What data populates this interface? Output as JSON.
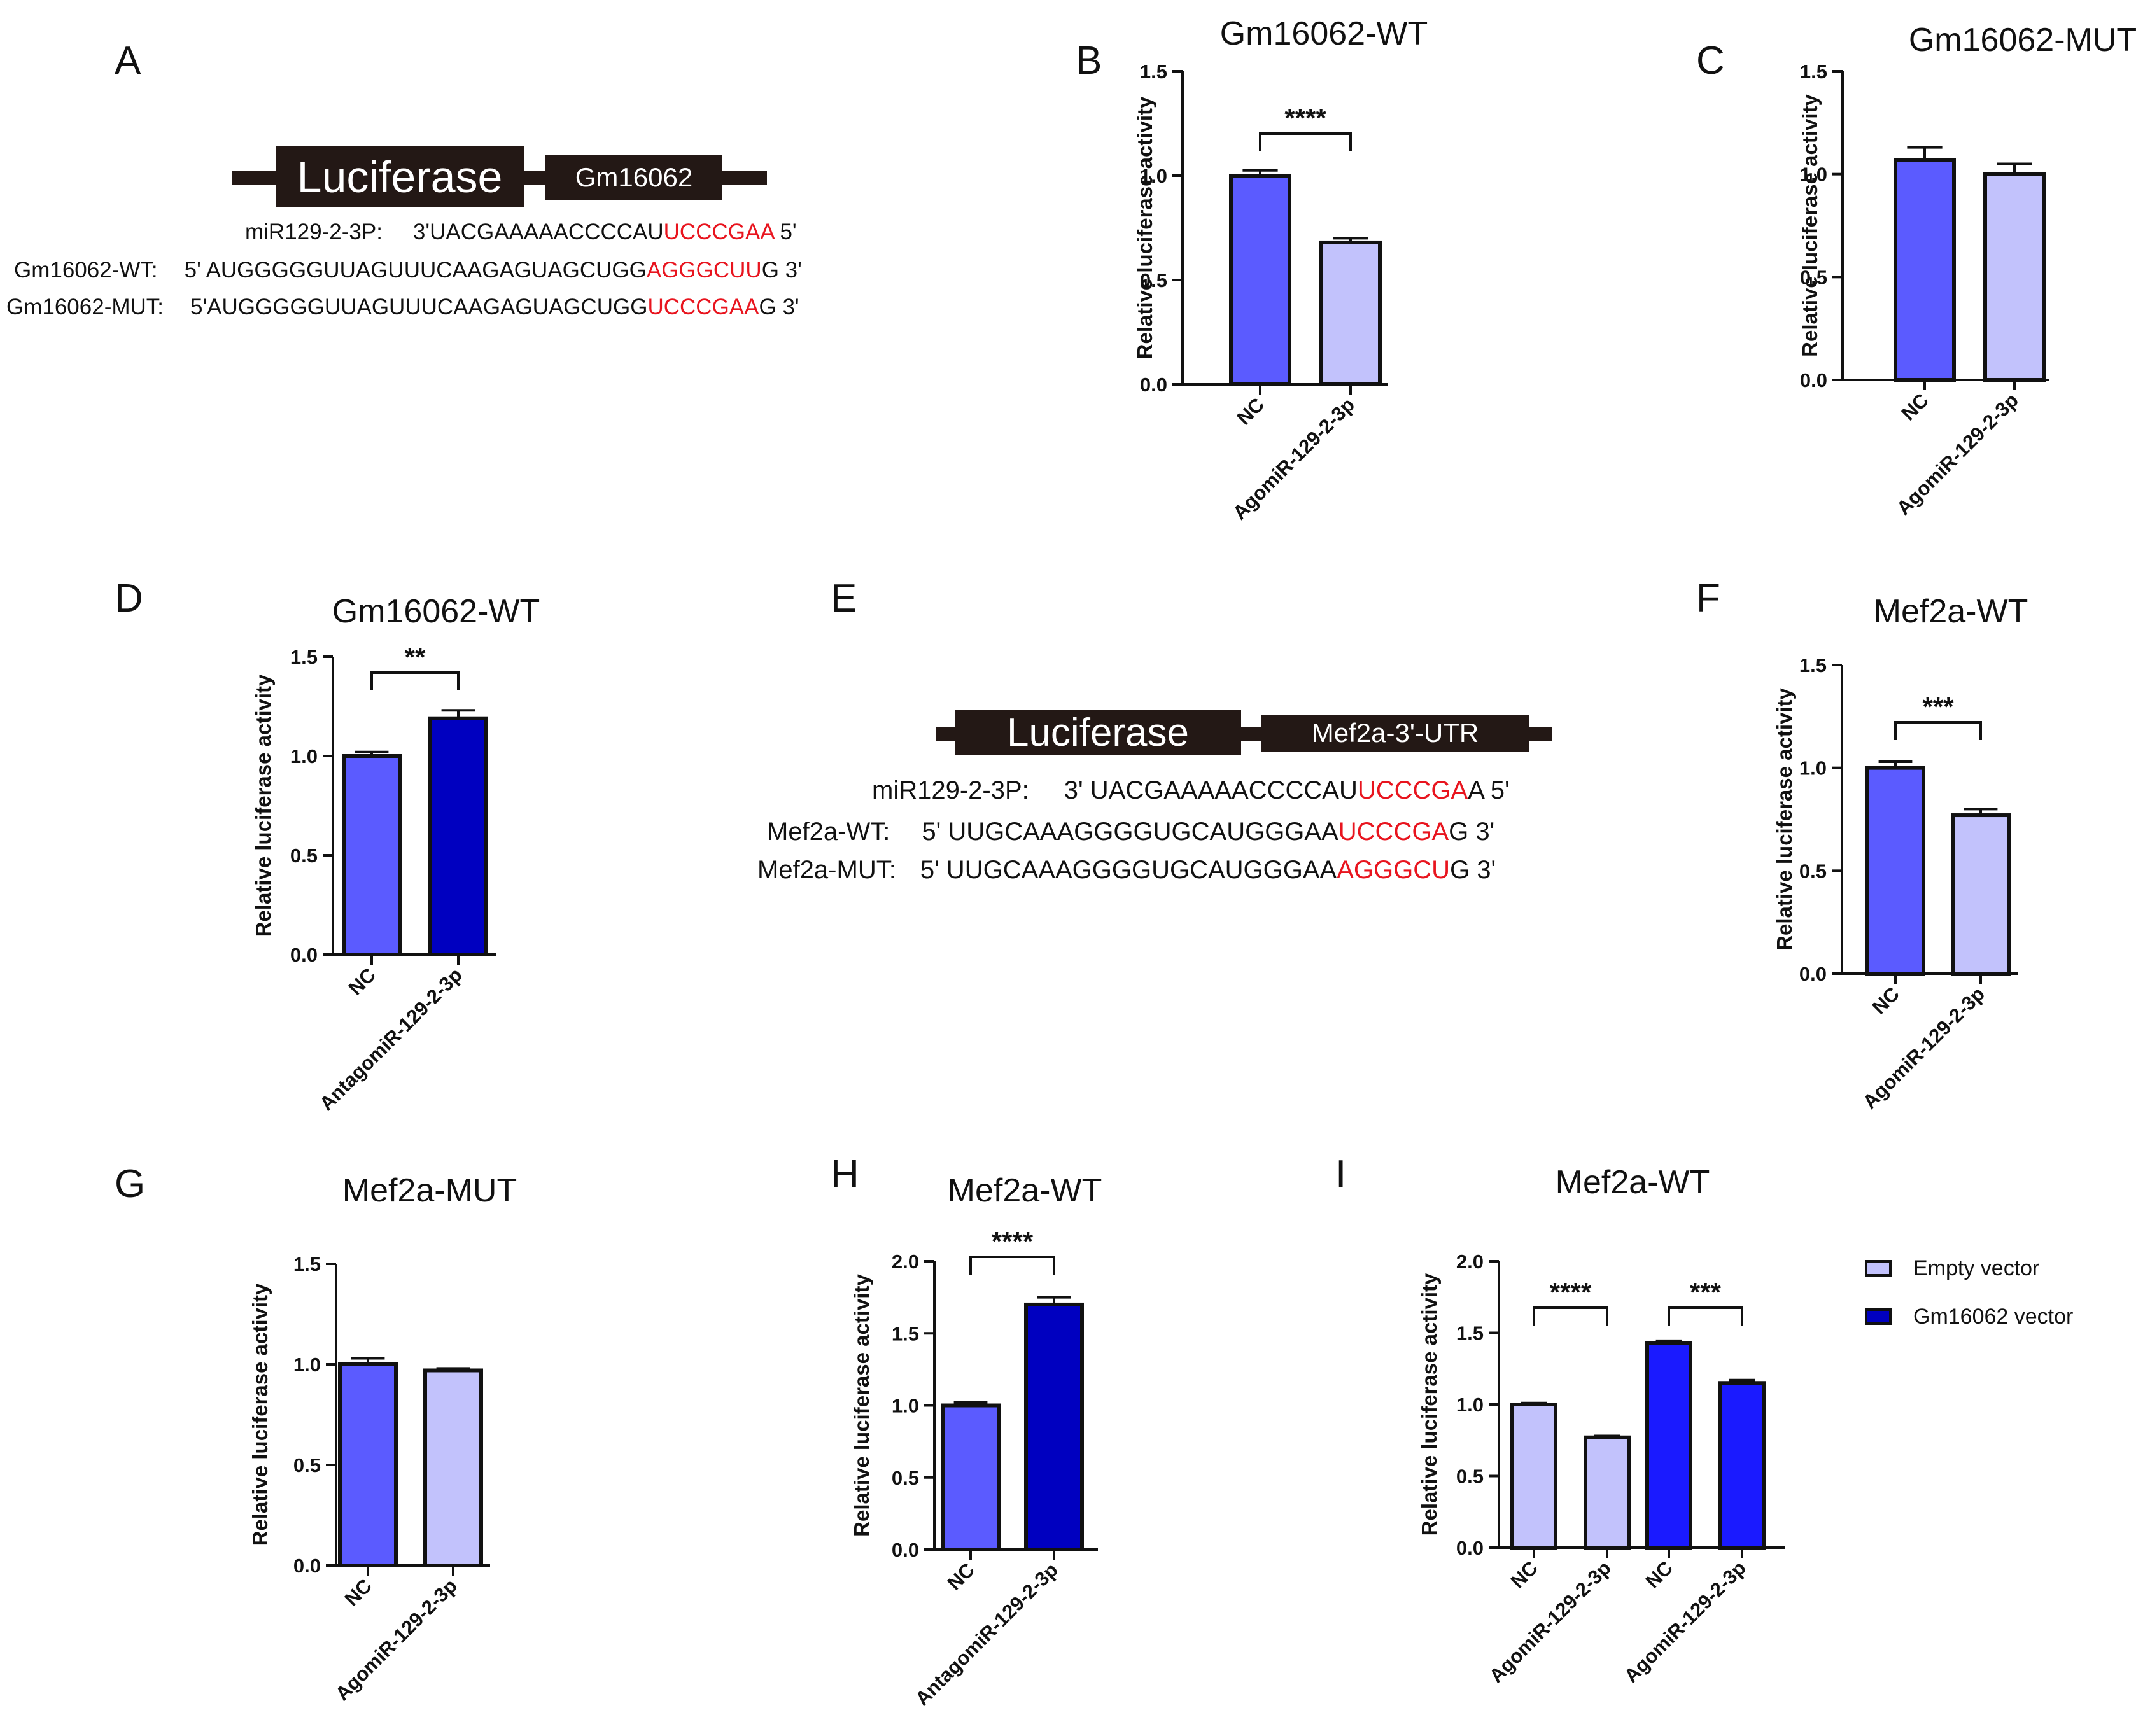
{
  "panels": {
    "A": "A",
    "B": "B",
    "C": "C",
    "D": "D",
    "E": "E",
    "F": "F",
    "G": "G",
    "H": "H",
    "I": "I"
  },
  "constructA": {
    "reporter": "Luciferase",
    "insert": "Gm16062",
    "rows": [
      {
        "label": "miR129-2-3P:",
        "seq": "3'UACGAAAAACCCCAU",
        "highlight": "UCCCGAA",
        "tail": " 5'"
      },
      {
        "label": "Gm16062-WT:",
        "seq": "5' AUGGGGGUUAGUUUCAAGAGUAGCUGG",
        "highlight": "AGGGCUU",
        "tail": "G  3'"
      },
      {
        "label": "Gm16062-MUT:",
        "seq": "5'AUGGGGGUUAGUUUCAAGAGUAGCUGG",
        "highlight": "UCCCGAA",
        "tail": "G  3'"
      }
    ]
  },
  "constructE": {
    "reporter": "Luciferase",
    "insert": "Mef2a-3'-UTR",
    "rows": [
      {
        "label": "miR129-2-3P:",
        "seq": "3' UACGAAAAACCCCAU",
        "highlight": "UCCCGA",
        "tail": "A  5'"
      },
      {
        "label": "Mef2a-WT:",
        "seq": "5' UUGCAAAGGGGUGCAUGGGAA",
        "highlight": "UCCCGA",
        "tail": "G  3'"
      },
      {
        "label": "Mef2a-MUT:",
        "seq": "5' UUGCAAAGGGGUGCAUGGGAA",
        "highlight": "AGGGCU",
        "tail": "G  3'"
      }
    ]
  },
  "colors": {
    "nc_blue": "#5b5bff",
    "light_lavender": "#c2c2fc",
    "dark_blue": "#0000c0",
    "bright_blue": "#1a1aff",
    "seq_red": "#e8141e"
  },
  "legend": [
    {
      "label": "Empty vector",
      "color": "#c2c2fc"
    },
    {
      "label": "Gm16062 vector",
      "color": "#0000c0"
    }
  ],
  "chart_data": [
    {
      "id": "B",
      "type": "bar",
      "title": "Gm16062-WT",
      "ylabel": "Relative luciferase activity",
      "ylim": [
        0,
        1.5
      ],
      "yticks": [
        "0.0",
        "0.5",
        "1.0",
        "1.5"
      ],
      "categories": [
        "NC",
        "AgomiR-129-2-3p"
      ],
      "values": [
        1.0,
        0.68
      ],
      "errors": [
        0.025,
        0.02
      ],
      "colors": [
        "#5b5bff",
        "#c2c2fc"
      ],
      "significance": [
        {
          "between": [
            0,
            1
          ],
          "label": "****"
        }
      ]
    },
    {
      "id": "C",
      "type": "bar",
      "title": "Gm16062-MUT",
      "ylabel": "Relative luciferase activity",
      "ylim": [
        0,
        1.5
      ],
      "yticks": [
        "0.0",
        "0.5",
        "1.0",
        "1.5"
      ],
      "categories": [
        "NC",
        "AgomiR-129-2-3p"
      ],
      "values": [
        1.07,
        1.0
      ],
      "errors": [
        0.06,
        0.05
      ],
      "colors": [
        "#5b5bff",
        "#c2c2fc"
      ],
      "significance": []
    },
    {
      "id": "D",
      "type": "bar",
      "title": "Gm16062-WT",
      "ylabel": "Relative luciferase activity",
      "ylim": [
        0,
        1.5
      ],
      "yticks": [
        "0.0",
        "0.5",
        "1.0",
        "1.5"
      ],
      "categories": [
        "NC",
        "AntagomiR-129-2-3p"
      ],
      "values": [
        1.0,
        1.19
      ],
      "errors": [
        0.02,
        0.04
      ],
      "colors": [
        "#5b5bff",
        "#0000c0"
      ],
      "significance": [
        {
          "between": [
            0,
            1
          ],
          "label": "**"
        }
      ]
    },
    {
      "id": "F",
      "type": "bar",
      "title": "Mef2a-WT",
      "ylabel": "Relative luciferase activity",
      "ylim": [
        0,
        1.5
      ],
      "yticks": [
        "0.0",
        "0.5",
        "1.0",
        "1.5"
      ],
      "categories": [
        "NC",
        "AgomiR-129-2-3p"
      ],
      "values": [
        1.0,
        0.77
      ],
      "errors": [
        0.03,
        0.03
      ],
      "colors": [
        "#5b5bff",
        "#c2c2fc"
      ],
      "significance": [
        {
          "between": [
            0,
            1
          ],
          "label": "***"
        }
      ]
    },
    {
      "id": "G",
      "type": "bar",
      "title": "Mef2a-MUT",
      "ylabel": "Relative luciferase activity",
      "ylim": [
        0,
        1.5
      ],
      "yticks": [
        "0.0",
        "0.5",
        "1.0",
        "1.5"
      ],
      "categories": [
        "NC",
        "AgomiR-129-2-3p"
      ],
      "values": [
        1.0,
        0.97
      ],
      "errors": [
        0.03,
        0.01
      ],
      "colors": [
        "#5b5bff",
        "#c2c2fc"
      ],
      "significance": []
    },
    {
      "id": "H",
      "type": "bar",
      "title": "Mef2a-WT",
      "ylabel": "Relative luciferase activity",
      "ylim": [
        0,
        2.0
      ],
      "yticks": [
        "0.0",
        "0.5",
        "1.0",
        "1.5",
        "2.0"
      ],
      "categories": [
        "NC",
        "AntagomiR-129-2-3p"
      ],
      "values": [
        1.0,
        1.7
      ],
      "errors": [
        0.02,
        0.05
      ],
      "colors": [
        "#5b5bff",
        "#0000c0"
      ],
      "significance": [
        {
          "between": [
            0,
            1
          ],
          "label": "****"
        }
      ]
    },
    {
      "id": "I",
      "type": "bar",
      "title": "Mef2a-WT",
      "ylabel": "Relative luciferase activity",
      "ylim": [
        0,
        2.0
      ],
      "yticks": [
        "0.0",
        "0.5",
        "1.0",
        "1.5",
        "2.0"
      ],
      "categories": [
        "NC",
        "AgomiR-129-2-3p",
        "NC",
        "AgomiR-129-2-3p"
      ],
      "values": [
        1.0,
        0.77,
        1.43,
        1.15
      ],
      "errors": [
        0.01,
        0.01,
        0.015,
        0.02
      ],
      "colors": [
        "#c2c2fc",
        "#c2c2fc",
        "#1a1aff",
        "#1a1aff"
      ],
      "significance": [
        {
          "between": [
            0,
            1
          ],
          "label": "****"
        },
        {
          "between": [
            2,
            3
          ],
          "label": "***"
        }
      ]
    }
  ]
}
